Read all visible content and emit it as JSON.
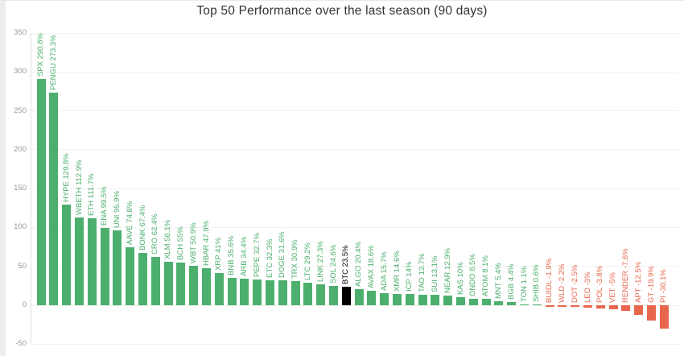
{
  "chart": {
    "title": "Top 50 Performance over the last season (90 days)"
  },
  "chart_data": {
    "type": "bar",
    "title": "Top 50 Performance over the last season (90 days)",
    "xlabel": "",
    "ylabel": "",
    "ylim": [
      -50,
      350
    ],
    "yticks": [
      350,
      300,
      250,
      200,
      150,
      100,
      50,
      0,
      -50
    ],
    "grid": true,
    "legend": false,
    "highlight_category": "BTC",
    "colors": {
      "positive": "#4caf6e",
      "negative": "#e8664d",
      "highlight": "#000000",
      "grid": "#f2f2f2",
      "axis": "#e0e0e0",
      "tick_text": "#999999"
    },
    "categories": [
      "SPX",
      "PENGU",
      "HYPE",
      "WBETH",
      "ETH",
      "ENA",
      "UNI",
      "AAVE",
      "BONK",
      "CRO",
      "XLM",
      "BCH",
      "WBT",
      "HBAR",
      "XRP",
      "BNB",
      "ARB",
      "PEPE",
      "ETC",
      "DOGE",
      "TRX",
      "LTC",
      "LINK",
      "SOL",
      "BTC",
      "ALGO",
      "AVAX",
      "ADA",
      "XMR",
      "ICP",
      "TAO",
      "SUI",
      "NEAR",
      "KAS",
      "ONDO",
      "ATOM",
      "MNT",
      "BGB",
      "TON",
      "SHIB",
      "BUIDL",
      "WLD",
      "DOT",
      "LEO",
      "POL",
      "VET",
      "RENDER",
      "APT",
      "GT",
      "PI"
    ],
    "values": [
      290.8,
      273.3,
      129.8,
      112.9,
      111.7,
      99.5,
      95.9,
      74.8,
      67.4,
      62.4,
      56.1,
      55,
      50.9,
      47.9,
      41,
      35.6,
      34.4,
      32.7,
      32.3,
      31.6,
      30.9,
      29.2,
      27.3,
      24.6,
      23.5,
      20.4,
      18.6,
      15.7,
      14.6,
      14,
      13.7,
      13.1,
      12.9,
      10,
      8.5,
      8.1,
      5.4,
      4.4,
      1.1,
      0.6,
      -1.9,
      -2.2,
      -2.5,
      -3,
      -3.8,
      -5,
      -7.6,
      -12.5,
      -19.9,
      -30.1
    ],
    "labels": [
      "SPX 290.8%",
      "PENGU 273.3%",
      "HYPE 129.8%",
      "WBETH 112.9%",
      "ETH 111.7%",
      "ENA 99.5%",
      "UNI 95.9%",
      "AAVE 74.8%",
      "BONK 67.4%",
      "CRO 62.4%",
      "XLM 56.1%",
      "BCH 55%",
      "WBT 50.9%",
      "HBAR 47.9%",
      "XRP 41%",
      "BNB 35.6%",
      "ARB 34.4%",
      "PEPE 32.7%",
      "ETC 32.3%",
      "DOGE 31.6%",
      "TRX 30.9%",
      "LTC 29.2%",
      "LINK 27.3%",
      "SOL 24.6%",
      "BTC 23.5%",
      "ALGO 20.4%",
      "AVAX 18.6%",
      "ADA 15.7%",
      "XMR 14.6%",
      "ICP 14%",
      "TAO 13.7%",
      "SUI 13.1%",
      "NEAR 12.9%",
      "KAS 10%",
      "ONDO 8.5%",
      "ATOM 8.1%",
      "MNT 5.4%",
      "BGB 4.4%",
      "TON 1.1%",
      "SHIB 0.6%",
      "BUIDL -1.9%",
      "WLD -2.2%",
      "DOT -2.5%",
      "LEO -3%",
      "POL -3.8%",
      "VET -5%",
      "RENDER -7.6%",
      "APT -12.5%",
      "GT -19.9%",
      "PI -30.1%"
    ]
  }
}
